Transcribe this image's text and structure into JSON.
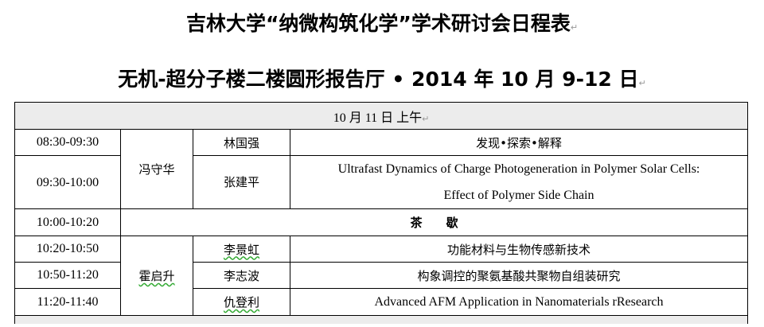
{
  "title_line1": "吉林大学“纳微构筑化学”学术研讨会日程表",
  "title_line2": "无机-超分子楼二楼圆形报告厅 • 2014 年 10 月 9-12 日",
  "session_header": "10 月 11 日  上午",
  "rows": [
    {
      "time": "08:30-09:30",
      "chair": "冯守华",
      "speaker": "林国强",
      "title": "发现•探索•解释"
    },
    {
      "time": "09:30-10:00",
      "speaker": "张建平",
      "title_line1": "Ultrafast Dynamics of Charge Photogeneration in Polymer Solar Cells:",
      "title_line2": "Effect of Polymer Side Chain"
    },
    {
      "time": "10:00-10:20",
      "break": "茶　　歇"
    },
    {
      "time": "10:20-10:50",
      "chair": "霍启升",
      "speaker": "李景虹",
      "title": "功能材料与生物传感新技术"
    },
    {
      "time": "10:50-11:20",
      "speaker": "李志波",
      "title": "构象调控的聚氨基酸共聚物自组装研究"
    },
    {
      "time": "11:20-11:40",
      "speaker": "仇登利",
      "title": "Advanced AFM Application in Nanomaterials rResearch"
    }
  ]
}
